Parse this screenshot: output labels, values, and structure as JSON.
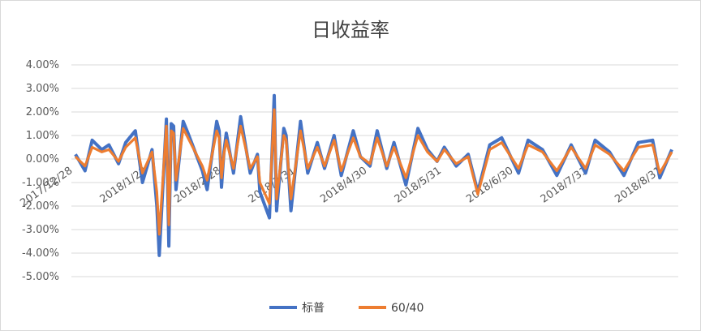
{
  "chart_data": {
    "type": "line",
    "title": "日收益率",
    "xlabel": "",
    "ylabel": "",
    "ylim": [
      -0.05,
      0.04
    ],
    "ytick_values": [
      0.04,
      0.03,
      0.02,
      0.01,
      0.0,
      -0.01,
      -0.02,
      -0.03,
      -0.04,
      -0.05
    ],
    "ytick_labels": [
      "4.00%",
      "3.00%",
      "2.00%",
      "1.00%",
      "0.00%",
      "-1.00%",
      "-2.00%",
      "-3.00%",
      "-4.00%",
      "-5.00%"
    ],
    "xtick_labels": [
      "2017/12/28",
      "2018/1/28",
      "2018/2/28",
      "2018/3/31",
      "2018/4/30",
      "2018/5/31",
      "2018/6/30",
      "2018/7/31",
      "2018/8/31"
    ],
    "grid": true,
    "legend_position": "bottom",
    "x": [
      "2017-12-29",
      "2018-01-02",
      "2018-01-05",
      "2018-01-09",
      "2018-01-12",
      "2018-01-16",
      "2018-01-19",
      "2018-01-23",
      "2018-01-26",
      "2018-01-30",
      "2018-02-01",
      "2018-02-02",
      "2018-02-05",
      "2018-02-06",
      "2018-02-07",
      "2018-02-08",
      "2018-02-09",
      "2018-02-12",
      "2018-02-14",
      "2018-02-20",
      "2018-02-22",
      "2018-02-26",
      "2018-02-27",
      "2018-02-28",
      "2018-03-01",
      "2018-03-02",
      "2018-03-05",
      "2018-03-08",
      "2018-03-12",
      "2018-03-15",
      "2018-03-16",
      "2018-03-20",
      "2018-03-22",
      "2018-03-23",
      "2018-03-26",
      "2018-03-27",
      "2018-03-29",
      "2018-04-02",
      "2018-04-05",
      "2018-04-09",
      "2018-04-12",
      "2018-04-16",
      "2018-04-19",
      "2018-04-24",
      "2018-04-27",
      "2018-05-01",
      "2018-05-04",
      "2018-05-08",
      "2018-05-11",
      "2018-05-16",
      "2018-05-21",
      "2018-05-25",
      "2018-05-29",
      "2018-06-01",
      "2018-06-06",
      "2018-06-11",
      "2018-06-15",
      "2018-06-20",
      "2018-06-25",
      "2018-07-02",
      "2018-07-06",
      "2018-07-12",
      "2018-07-18",
      "2018-07-24",
      "2018-07-30",
      "2018-08-03",
      "2018-08-09",
      "2018-08-15",
      "2018-08-21",
      "2018-08-27",
      "2018-08-30",
      "2018-09-04"
    ],
    "series": [
      {
        "name": "标普",
        "color": "#4472C4",
        "values": [
          0.002,
          -0.005,
          0.008,
          0.004,
          0.006,
          -0.002,
          0.007,
          0.012,
          -0.01,
          0.004,
          -0.02,
          -0.041,
          0.017,
          -0.037,
          0.015,
          0.014,
          -0.013,
          0.016,
          0.011,
          -0.005,
          -0.013,
          0.016,
          0.012,
          -0.012,
          0.003,
          0.011,
          -0.006,
          0.018,
          -0.006,
          0.002,
          -0.014,
          -0.025,
          0.027,
          -0.022,
          0.013,
          0.01,
          -0.022,
          0.016,
          -0.006,
          0.007,
          -0.004,
          0.01,
          -0.007,
          0.012,
          0.001,
          -0.003,
          0.012,
          -0.004,
          0.007,
          -0.011,
          0.013,
          0.004,
          -0.001,
          0.005,
          -0.003,
          0.002,
          -0.014,
          0.006,
          0.009,
          -0.006,
          0.008,
          0.004,
          -0.007,
          0.006,
          -0.006,
          0.008,
          0.003,
          -0.007,
          0.007,
          0.008,
          -0.008,
          0.004
        ]
      },
      {
        "name": "60/40",
        "color": "#ED7D31",
        "values": [
          0.001,
          -0.003,
          0.005,
          0.003,
          0.004,
          -0.001,
          0.005,
          0.009,
          -0.006,
          0.003,
          -0.014,
          -0.032,
          0.014,
          -0.028,
          0.012,
          0.011,
          -0.009,
          0.013,
          0.009,
          -0.003,
          -0.009,
          0.012,
          0.009,
          -0.008,
          0.002,
          0.008,
          -0.004,
          0.014,
          -0.004,
          0.001,
          -0.01,
          -0.019,
          0.021,
          -0.017,
          0.01,
          0.008,
          -0.017,
          0.012,
          -0.004,
          0.005,
          -0.003,
          0.008,
          -0.005,
          0.009,
          0.001,
          -0.002,
          0.009,
          -0.003,
          0.005,
          -0.008,
          0.01,
          0.003,
          -0.001,
          0.004,
          -0.002,
          0.001,
          -0.015,
          0.004,
          0.007,
          -0.004,
          0.006,
          0.003,
          -0.005,
          0.005,
          -0.004,
          0.006,
          0.002,
          -0.005,
          0.005,
          0.006,
          -0.006,
          0.003
        ]
      }
    ]
  }
}
